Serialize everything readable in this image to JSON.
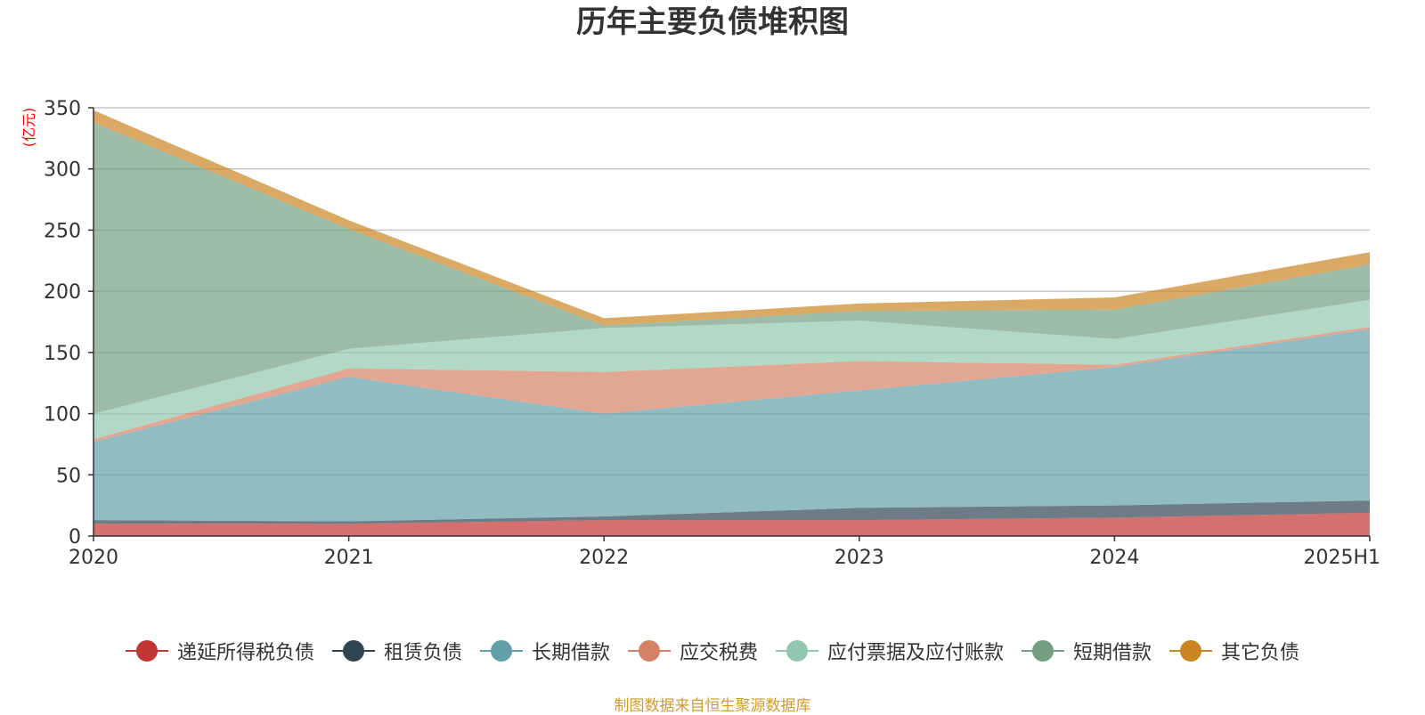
{
  "chart_data": {
    "type": "area",
    "stacked": true,
    "title": "历年主要负债堆积图",
    "ylabel": "(亿元)",
    "xlabel": "",
    "categories": [
      "2020",
      "2021",
      "2022",
      "2023",
      "2024",
      "2025H1"
    ],
    "ylim": [
      0,
      350
    ],
    "yticks": [
      0,
      50,
      100,
      150,
      200,
      250,
      300,
      350
    ],
    "grid": true,
    "legend_position": "bottom",
    "series": [
      {
        "name": "递延所得税负债",
        "color": "#c23531",
        "values": [
          10,
          10,
          13,
          13,
          15,
          19
        ]
      },
      {
        "name": "租赁负债",
        "color": "#2f4554",
        "values": [
          3,
          2,
          3,
          10,
          10,
          10
        ]
      },
      {
        "name": "长期借款",
        "color": "#61a0a8",
        "values": [
          64,
          118,
          84,
          96,
          113,
          140
        ]
      },
      {
        "name": "应交税费",
        "color": "#d48265",
        "values": [
          2,
          7,
          34,
          24,
          2,
          2
        ]
      },
      {
        "name": "应付票据及应付账款",
        "color": "#91c7ae",
        "values": [
          21,
          16,
          36,
          33,
          21,
          22
        ]
      },
      {
        "name": "短期借款",
        "color": "#749f83",
        "values": [
          238,
          98,
          2,
          8,
          24,
          29
        ]
      },
      {
        "name": "其它负债",
        "color": "#ca8622",
        "values": [
          10,
          7,
          6,
          6,
          10,
          10
        ]
      }
    ]
  },
  "footer": {
    "source": "制图数据来自恒生聚源数据库"
  }
}
